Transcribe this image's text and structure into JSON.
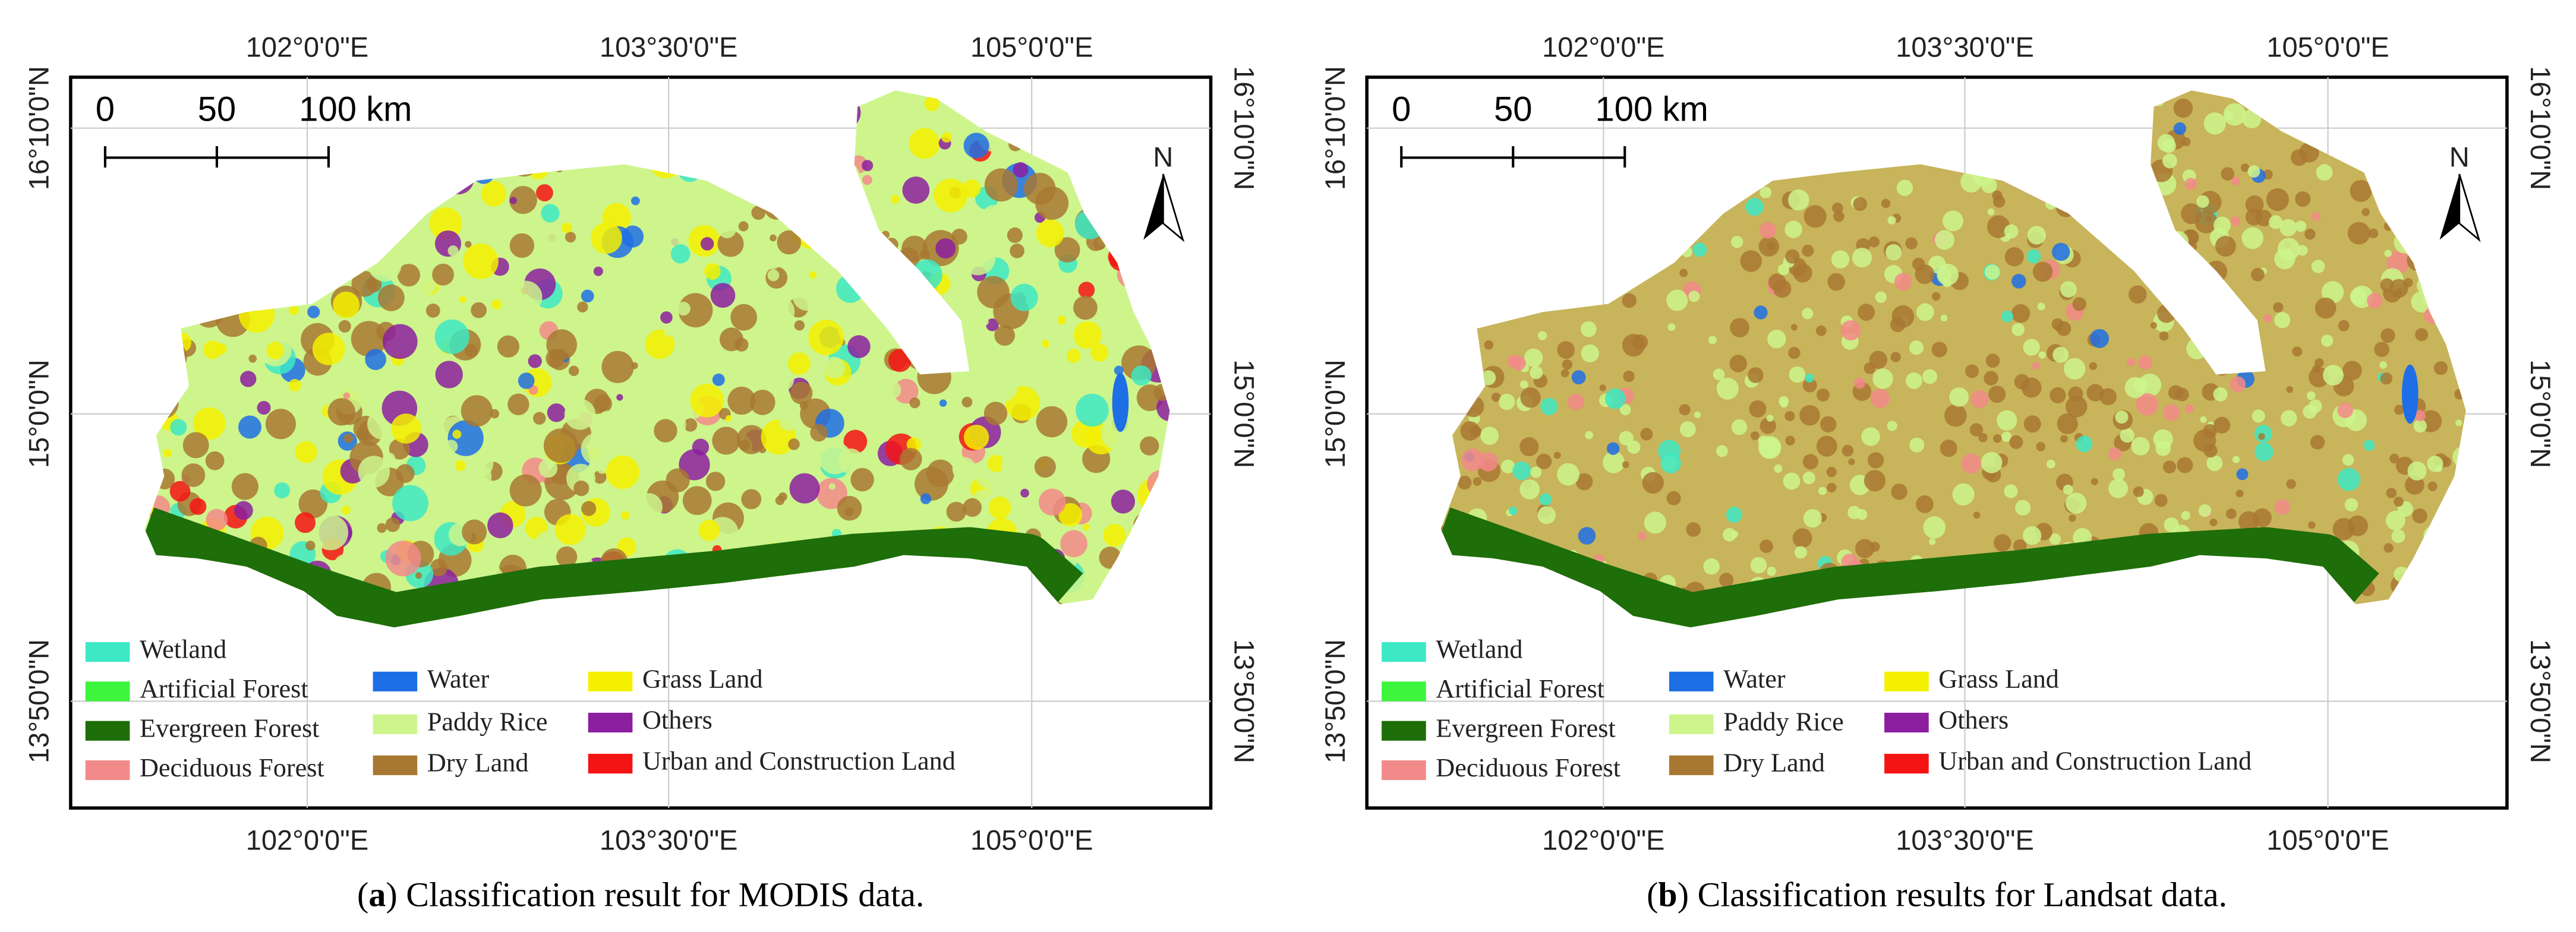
{
  "legend": [
    {
      "label": "Wetland",
      "color": "#3de8c4"
    },
    {
      "label": "Artificial Forest",
      "color": "#3cf53c"
    },
    {
      "label": "Evergreen Forest",
      "color": "#1e6e0a"
    },
    {
      "label": "Deciduous Forest",
      "color": "#f28a8a"
    },
    {
      "label": "Water",
      "color": "#1e6ee6"
    },
    {
      "label": "Paddy Rice",
      "color": "#cdf58c"
    },
    {
      "label": "Dry Land",
      "color": "#a87832"
    },
    {
      "label": "Grass Land",
      "color": "#f5f000"
    },
    {
      "label": "Others",
      "color": "#8c1ea0"
    },
    {
      "label": "Urban and Construction Land",
      "color": "#f51414"
    }
  ],
  "panels": [
    {
      "caption": [
        "(",
        "a",
        ") Classification result for MODIS data."
      ],
      "top_labels": [
        "102°0'0\"E",
        "103°30'0\"E",
        "105°0'0\"E"
      ],
      "bottom_labels": [
        "102°0'0\"E",
        "103°30'0\"E",
        "105°0'0\"E"
      ],
      "left_labels": [
        "16°10'0\"N",
        "15°0'0\"N",
        "13°50'0\"N"
      ],
      "right_labels": [
        "16°10'0\"N",
        "15°0'0\"N",
        "13°50'0\"N"
      ],
      "scale_labels": [
        "0",
        "50",
        "100 km"
      ],
      "north": "N"
    },
    {
      "caption": [
        "(",
        "b",
        ") Classification results for Landsat data."
      ],
      "top_labels": [
        "102°0'0\"E",
        "103°30'0\"E",
        "105°0'0\"E"
      ],
      "bottom_labels": [
        "102°0'0\"E",
        "103°30'0\"E",
        "105°0'0\"E"
      ],
      "left_labels": [
        "16°10'0\"N",
        "15°0'0\"N",
        "13°50'0\"N"
      ],
      "right_labels": [
        "16°10'0\"N",
        "15°0'0\"N",
        "13°50'0\"N"
      ],
      "scale_labels": [
        "0",
        "50",
        "100 km"
      ],
      "north": "N"
    }
  ]
}
